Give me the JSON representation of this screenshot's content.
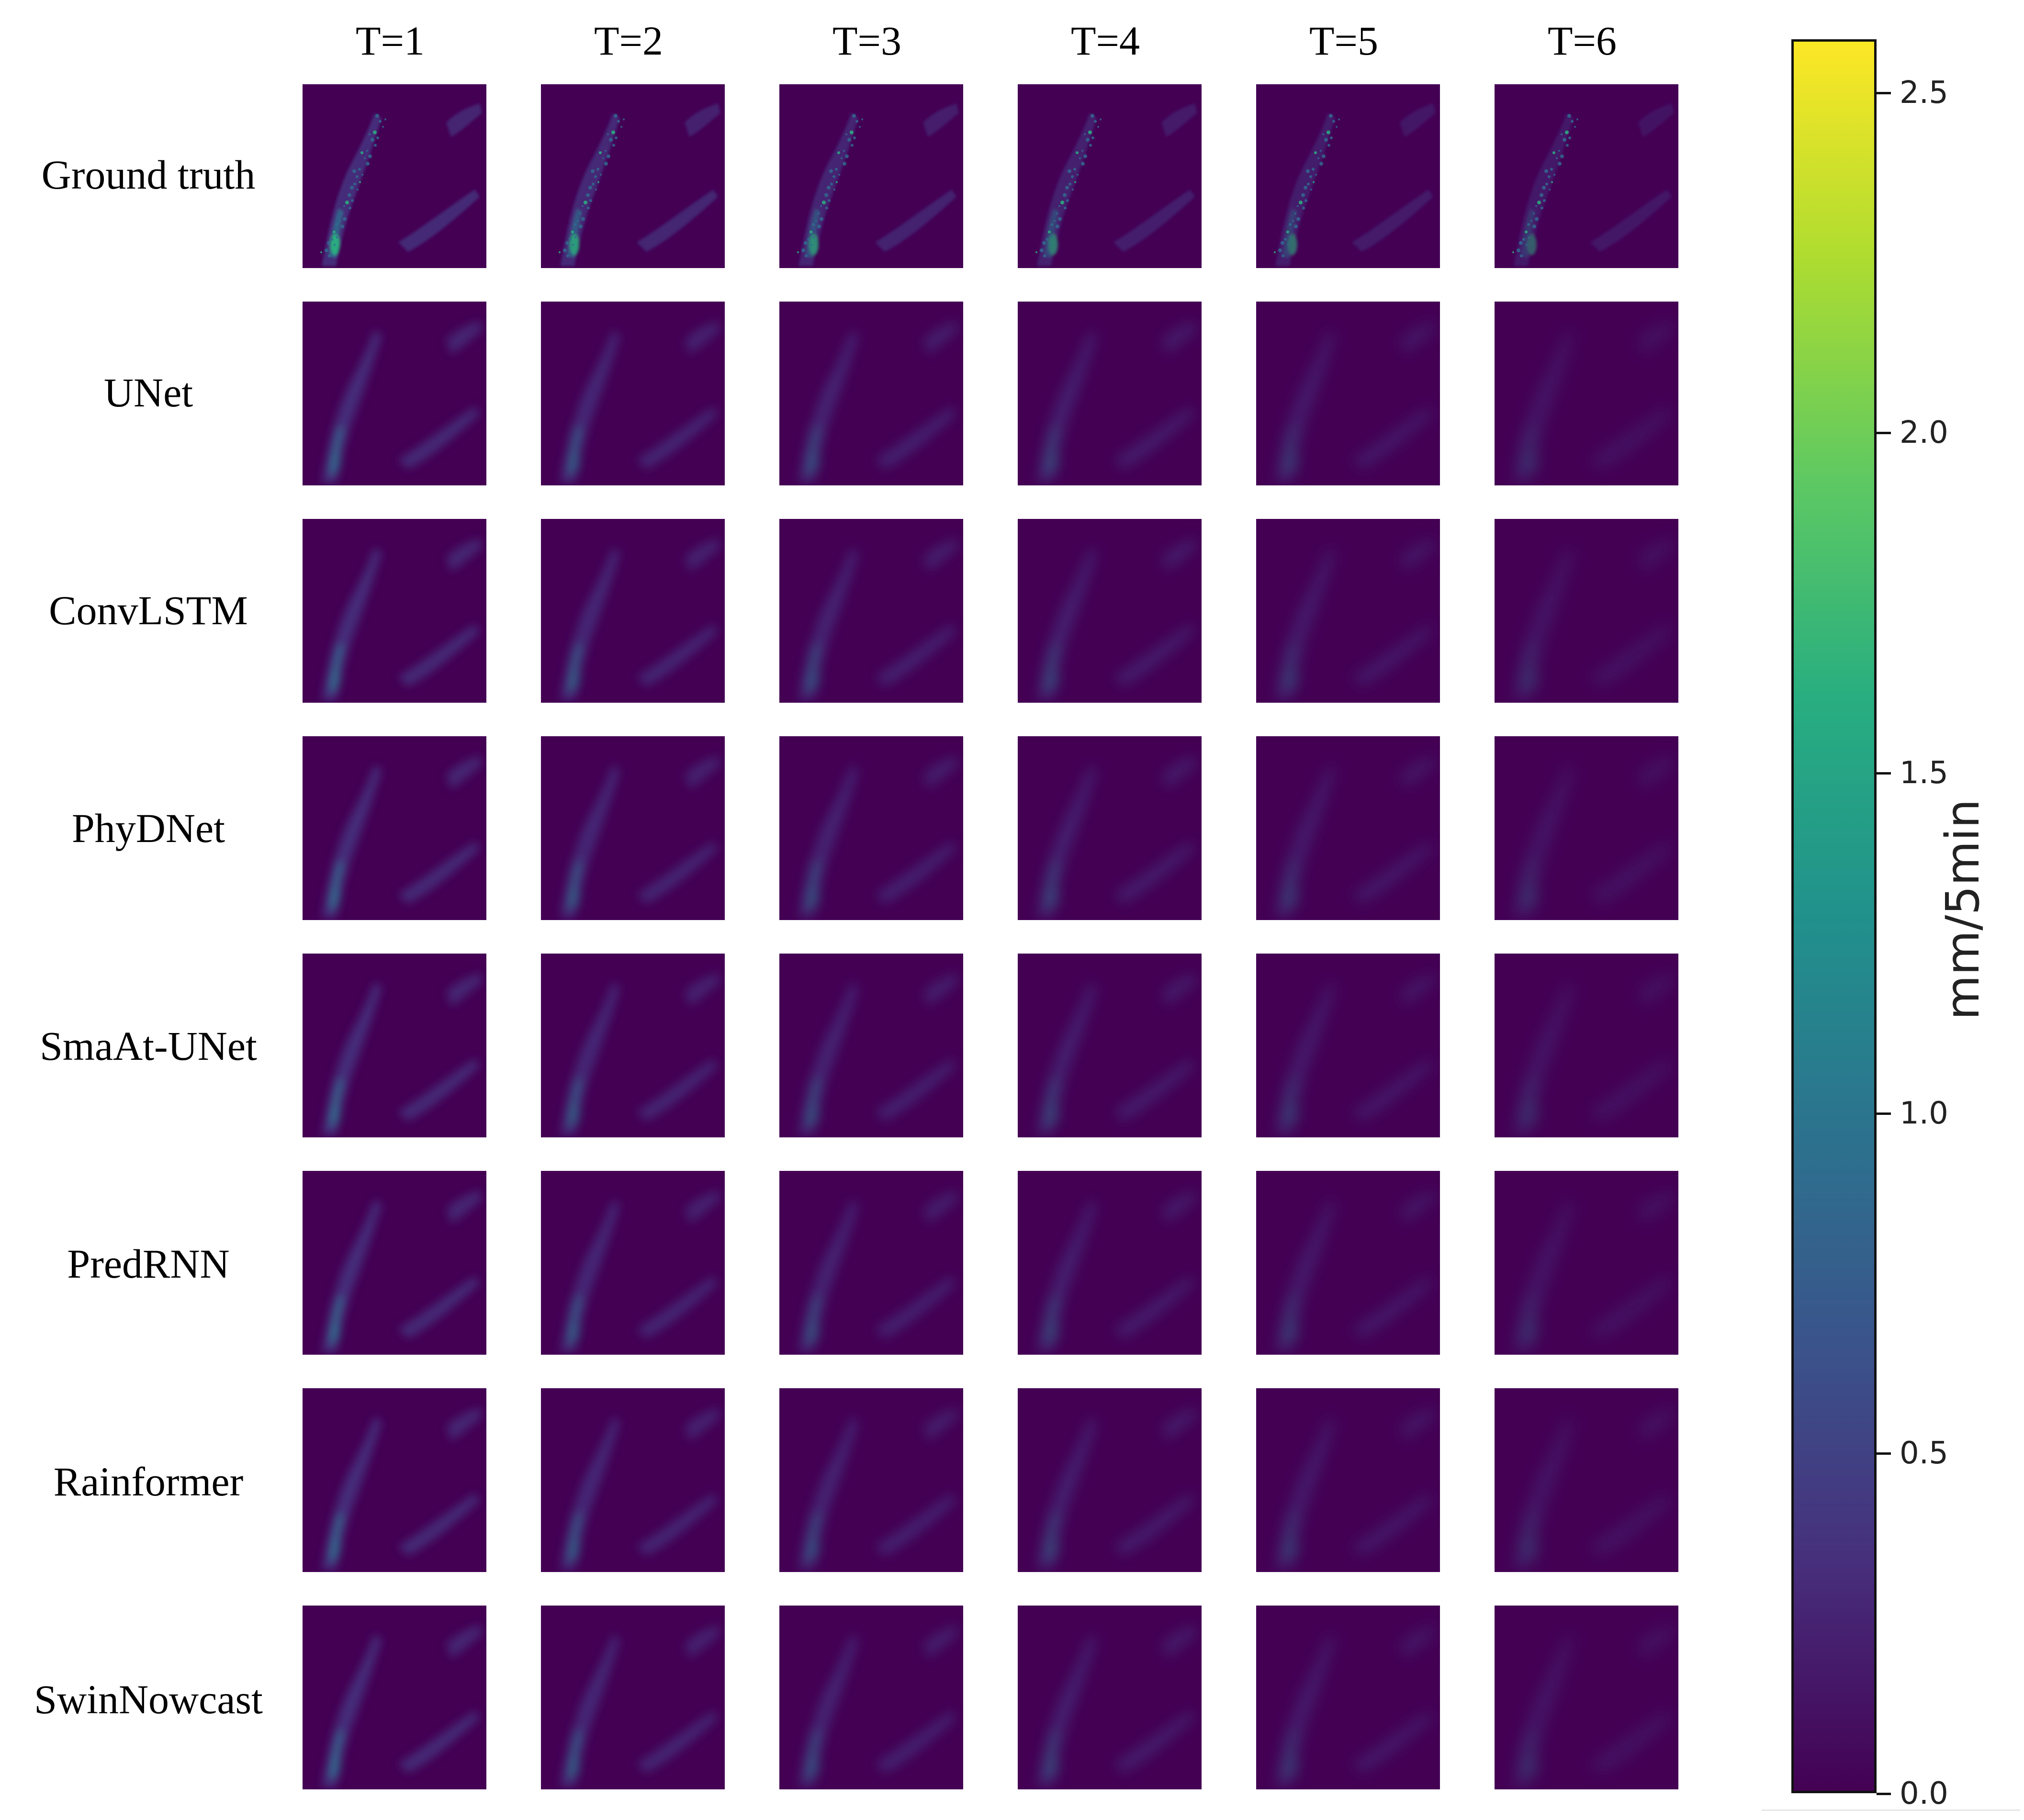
{
  "figure": {
    "columns": [
      "T=1",
      "T=2",
      "T=3",
      "T=4",
      "T=5",
      "T=6"
    ],
    "rows": [
      "Ground truth",
      "UNet",
      "ConvLSTM",
      "PhyDNet",
      "SmaAt-UNet",
      "PredRNN",
      "Rainformer",
      "SwinNowcast"
    ]
  },
  "colorbar": {
    "title": "mm/5min",
    "min": 0.0,
    "max": 2.6,
    "colormap": "viridis",
    "ticks": [
      {
        "value": 0.0,
        "label": "0.0"
      },
      {
        "value": 0.5,
        "label": "0.5"
      },
      {
        "value": 1.0,
        "label": "1.0"
      },
      {
        "value": 1.5,
        "label": "1.5"
      },
      {
        "value": 2.0,
        "label": "2.0"
      },
      {
        "value": 2.5,
        "label": "2.5"
      }
    ],
    "stops": [
      "#440154",
      "#472d7b",
      "#3b528b",
      "#2c728e",
      "#21918c",
      "#28ae80",
      "#5ec962",
      "#addc30",
      "#fde725"
    ]
  },
  "colors": {
    "background": "#440154",
    "rain_low": "#46327e",
    "rain_mid": "#31688e",
    "rain_high": "#2ab07f"
  }
}
